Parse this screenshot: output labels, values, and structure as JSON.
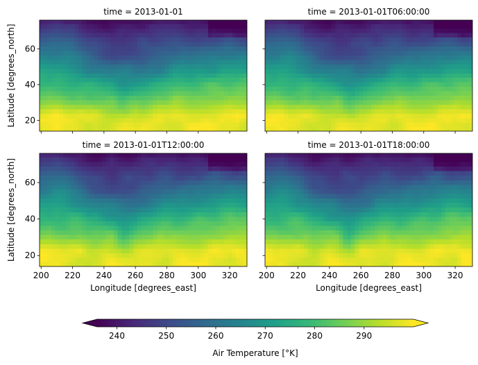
{
  "chart_data": {
    "type": "heatmap",
    "colormap": "viridis",
    "variable_label": "Air Temperature [°K]",
    "xlabel": "Longitude [degrees_east]",
    "ylabel": "Latitude [degrees_north]",
    "xlim": [
      199,
      331
    ],
    "ylim": [
      14,
      76
    ],
    "x_ticks": [
      200,
      220,
      240,
      260,
      280,
      300,
      320
    ],
    "y_ticks": [
      20,
      40,
      60
    ],
    "colorbar": {
      "vmin": 236,
      "vmax": 300,
      "ticks": [
        240,
        250,
        260,
        270,
        280,
        290
      ],
      "extend": "both",
      "orientation": "horizontal",
      "label": "Air Temperature [°K]"
    },
    "grid": {
      "lon_start": 200,
      "lon_step": 2.5,
      "n_lon": 53,
      "lat_start": 75,
      "lat_step": -2.5,
      "n_lat": 25
    },
    "panels": [
      {
        "title": "time = 2013-01-01"
      },
      {
        "title": "time = 2013-01-01T06:00:00"
      },
      {
        "title": "time = 2013-01-01T12:00:00"
      },
      {
        "title": "time = 2013-01-01T18:00:00"
      }
    ]
  }
}
